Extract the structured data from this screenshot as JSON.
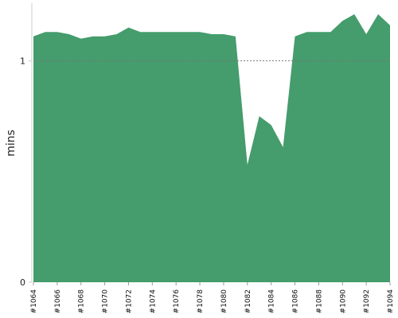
{
  "chart_data": {
    "type": "area",
    "ylabel": "mins",
    "xlabel": "",
    "ylim": [
      0,
      1.26
    ],
    "yticks": [
      0,
      1
    ],
    "reference_line": 1,
    "grid": false,
    "legend": "none",
    "x": [
      "#1064",
      "#1065",
      "#1066",
      "#1067",
      "#1068",
      "#1069",
      "#1070",
      "#1071",
      "#1072",
      "#1073",
      "#1074",
      "#1075",
      "#1076",
      "#1077",
      "#1078",
      "#1079",
      "#1080",
      "#1081",
      "#1082",
      "#1083",
      "#1084",
      "#1085",
      "#1086",
      "#1087",
      "#1088",
      "#1089",
      "#1090",
      "#1091",
      "#1092",
      "#1093",
      "#1094"
    ],
    "xtick_labels": [
      "#1064",
      "#1066",
      "#1068",
      "#1070",
      "#1072",
      "#1074",
      "#1076",
      "#1078",
      "#1080",
      "#1082",
      "#1084",
      "#1086",
      "#1088",
      "#1090",
      "#1092",
      "#1094"
    ],
    "series": [
      {
        "values": [
          1.11,
          1.13,
          1.13,
          1.12,
          1.1,
          1.11,
          1.11,
          1.12,
          1.15,
          1.13,
          1.13,
          1.13,
          1.13,
          1.13,
          1.13,
          1.12,
          1.12,
          1.11,
          0.53,
          0.75,
          0.71,
          0.61,
          1.11,
          1.13,
          1.13,
          1.13,
          1.18,
          1.21,
          1.12,
          1.21,
          1.16
        ],
        "color": "#459c6c"
      }
    ],
    "colors": {
      "area": "#459c6c",
      "axis": "#cccccc",
      "reference_line": "#777777"
    }
  }
}
